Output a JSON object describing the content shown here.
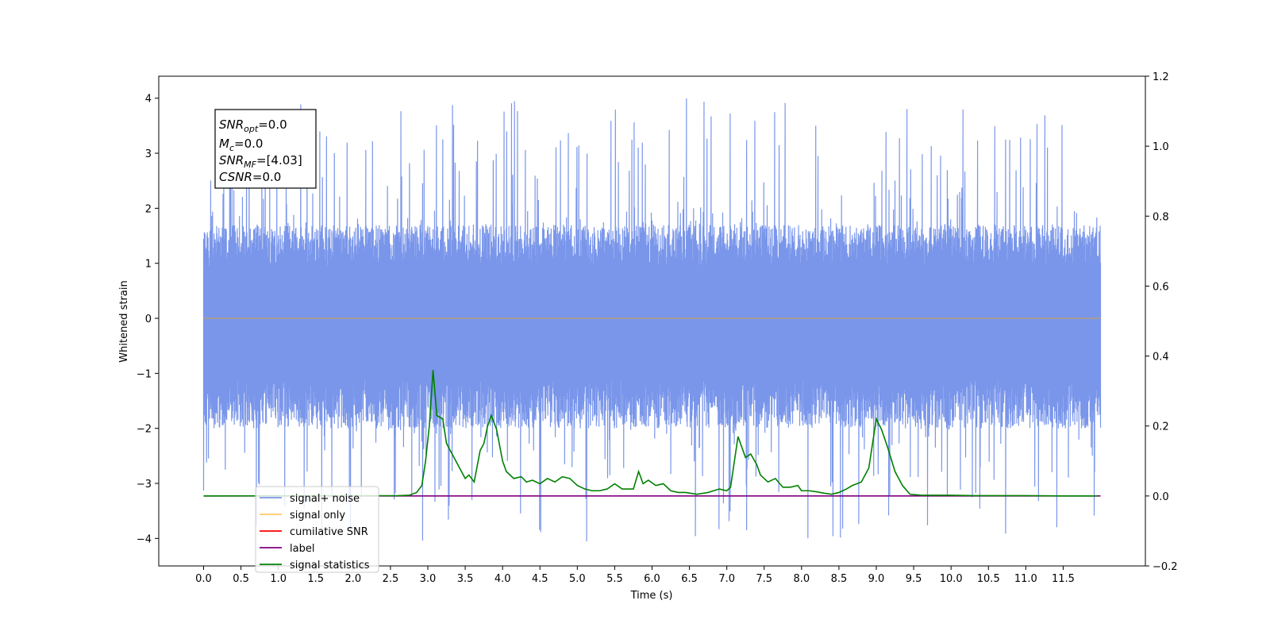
{
  "chart_data": {
    "type": "line",
    "title": "",
    "xlabel": "Time (s)",
    "ylabel": "Whitened strain",
    "xlim": [
      -0.6,
      12.6
    ],
    "ylim": [
      -4.5,
      4.4
    ],
    "y2lim": [
      -0.2,
      1.2
    ],
    "grid": false,
    "legend_position": "lower-left",
    "x_tick_labels": [
      "0.0",
      "0.5",
      "1.0",
      "1.5",
      "2.0",
      "2.5",
      "3.0",
      "3.5",
      "4.0",
      "4.5",
      "5.0",
      "5.5",
      "6.0",
      "6.5",
      "7.0",
      "7.5",
      "8.0",
      "8.5",
      "9.0",
      "9.5",
      "10.0",
      "10.5",
      "11.0",
      "11.5"
    ],
    "y_tick_labels": [
      "−4",
      "−3",
      "−2",
      "−1",
      "0",
      "1",
      "2",
      "3",
      "4"
    ],
    "y2_tick_labels": [
      "−0.2",
      "0.0",
      "0.2",
      "0.4",
      "0.6",
      "0.8",
      "1.0",
      "1.2"
    ],
    "info_box": {
      "line1": "SNR_opt=0.0",
      "line2": "M_c=0.0",
      "line3": "SNR_MF=[4.03]",
      "line4": "CSNR=0.0"
    },
    "series": [
      {
        "name": "signal+ noise",
        "axis": "left",
        "color": "#4169e1",
        "style": "noise",
        "x_range": [
          0.0,
          12.0
        ],
        "typical_upper": 1.7,
        "typical_lower": -2.0,
        "peak_max": 4.0,
        "peak_min": -4.1
      },
      {
        "name": "signal only",
        "axis": "left",
        "color": "#ffa500",
        "x": [
          0.0,
          12.0
        ],
        "values": [
          0.0,
          0.0
        ]
      },
      {
        "name": "cumilative SNR",
        "axis": "right",
        "color": "#ff0000",
        "x": [],
        "values": []
      },
      {
        "name": "label",
        "axis": "right",
        "color": "#800080",
        "x": [
          0.0,
          12.0
        ],
        "values": [
          0.0,
          0.0
        ]
      },
      {
        "name": "signal statistics",
        "axis": "right",
        "color": "#008000",
        "x": [
          0.0,
          2.6,
          2.75,
          2.85,
          2.92,
          2.97,
          3.02,
          3.07,
          3.12,
          3.2,
          3.25,
          3.35,
          3.45,
          3.5,
          3.55,
          3.62,
          3.7,
          3.75,
          3.8,
          3.85,
          3.92,
          4.0,
          4.05,
          4.15,
          4.25,
          4.32,
          4.4,
          4.5,
          4.6,
          4.7,
          4.8,
          4.9,
          5.0,
          5.1,
          5.2,
          5.3,
          5.4,
          5.5,
          5.6,
          5.75,
          5.82,
          5.88,
          5.95,
          6.05,
          6.15,
          6.25,
          6.35,
          6.45,
          6.6,
          6.75,
          6.9,
          7.0,
          7.05,
          7.15,
          7.25,
          7.32,
          7.4,
          7.45,
          7.55,
          7.65,
          7.75,
          7.85,
          7.95,
          8.0,
          8.1,
          8.2,
          8.3,
          8.4,
          8.5,
          8.6,
          8.68,
          8.8,
          8.9,
          9.0,
          9.07,
          9.15,
          9.25,
          9.35,
          9.45,
          9.6,
          9.8,
          10.0,
          10.3,
          10.6,
          11.0,
          11.5,
          11.95
        ],
        "values": [
          0.0,
          0.001,
          0.002,
          0.01,
          0.03,
          0.1,
          0.2,
          0.36,
          0.23,
          0.22,
          0.15,
          0.11,
          0.07,
          0.05,
          0.06,
          0.04,
          0.13,
          0.15,
          0.2,
          0.23,
          0.19,
          0.1,
          0.07,
          0.05,
          0.055,
          0.04,
          0.045,
          0.035,
          0.05,
          0.04,
          0.055,
          0.05,
          0.03,
          0.02,
          0.015,
          0.015,
          0.02,
          0.035,
          0.02,
          0.02,
          0.07,
          0.035,
          0.045,
          0.03,
          0.035,
          0.015,
          0.01,
          0.01,
          0.005,
          0.01,
          0.02,
          0.015,
          0.025,
          0.17,
          0.11,
          0.12,
          0.09,
          0.06,
          0.04,
          0.05,
          0.025,
          0.025,
          0.03,
          0.015,
          0.015,
          0.012,
          0.008,
          0.005,
          0.01,
          0.02,
          0.03,
          0.04,
          0.08,
          0.22,
          0.19,
          0.14,
          0.07,
          0.03,
          0.005,
          0.002,
          0.002,
          0.002,
          0.001,
          0.001,
          0.001,
          0.0,
          0.0
        ]
      }
    ]
  }
}
